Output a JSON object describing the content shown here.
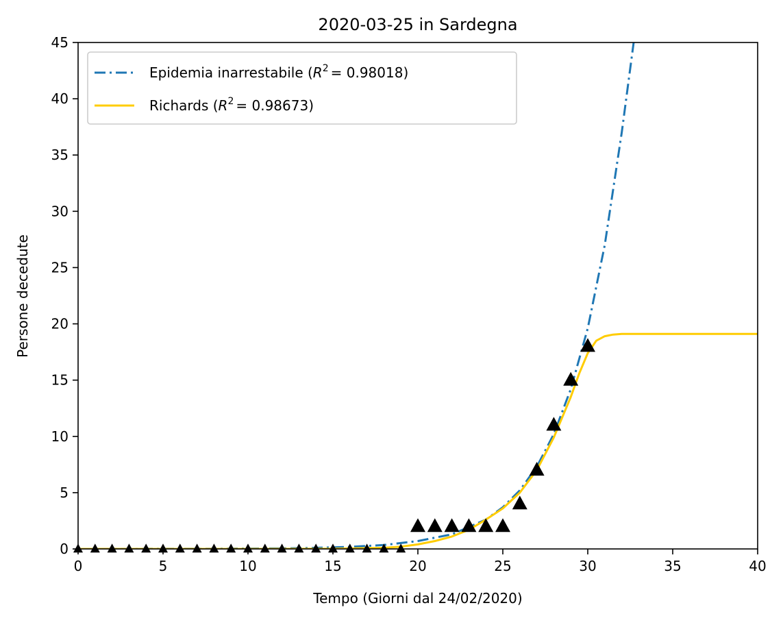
{
  "chart_data": {
    "type": "line",
    "title": "2020-03-25 in Sardegna",
    "xlabel": "Tempo (Giorni dal 24/02/2020)",
    "ylabel": "Persone decedute",
    "xlim": [
      0,
      40
    ],
    "ylim": [
      0,
      45
    ],
    "xticks": [
      0,
      5,
      10,
      15,
      20,
      25,
      30,
      35,
      40
    ],
    "yticks": [
      0,
      5,
      10,
      15,
      20,
      25,
      30,
      35,
      40,
      45
    ],
    "grid": false,
    "legend_position": "upper-left",
    "series": [
      {
        "name": "Epidemia inarrestabile",
        "r2_label": "R",
        "r2_exp": "2",
        "r2_value": "= 0.98018)",
        "style": "dashdot",
        "color": "#1f77b4",
        "x": [
          0,
          4,
          8,
          12,
          14,
          16,
          18,
          20,
          22,
          24,
          25,
          26,
          27,
          28,
          29,
          30,
          31,
          32,
          32.7
        ],
        "y": [
          0.0,
          0.01,
          0.02,
          0.05,
          0.1,
          0.18,
          0.35,
          0.7,
          1.3,
          2.6,
          3.7,
          5.2,
          7.3,
          10.2,
          14.2,
          19.6,
          27.0,
          37.0,
          45.0
        ]
      },
      {
        "name": "Richards",
        "r2_label": "R",
        "r2_exp": "2",
        "r2_value": "= 0.98673)",
        "style": "solid",
        "color": "#ffcc00",
        "x": [
          0,
          10,
          15,
          18,
          19,
          20,
          21,
          22,
          23,
          24,
          25,
          26,
          27,
          28,
          29,
          29.5,
          30,
          30.5,
          31,
          31.5,
          32,
          33,
          35,
          40
        ],
        "y": [
          0,
          0,
          0.02,
          0.1,
          0.2,
          0.4,
          0.7,
          1.1,
          1.7,
          2.6,
          3.6,
          5.0,
          7.0,
          9.9,
          13.5,
          15.6,
          17.4,
          18.5,
          18.9,
          19.05,
          19.1,
          19.1,
          19.1,
          19.1
        ]
      }
    ],
    "observed": {
      "marker": "triangle",
      "color": "#000000",
      "x": [
        0,
        1,
        2,
        3,
        4,
        5,
        6,
        7,
        8,
        9,
        10,
        11,
        12,
        13,
        14,
        15,
        16,
        17,
        18,
        19,
        20,
        21,
        22,
        23,
        24,
        25,
        26,
        27,
        28,
        29,
        30
      ],
      "y": [
        0,
        0,
        0,
        0,
        0,
        0,
        0,
        0,
        0,
        0,
        0,
        0,
        0,
        0,
        0,
        0,
        0,
        0,
        0,
        0,
        2,
        2,
        2,
        2,
        2,
        2,
        4,
        7,
        11,
        15,
        18
      ]
    }
  }
}
